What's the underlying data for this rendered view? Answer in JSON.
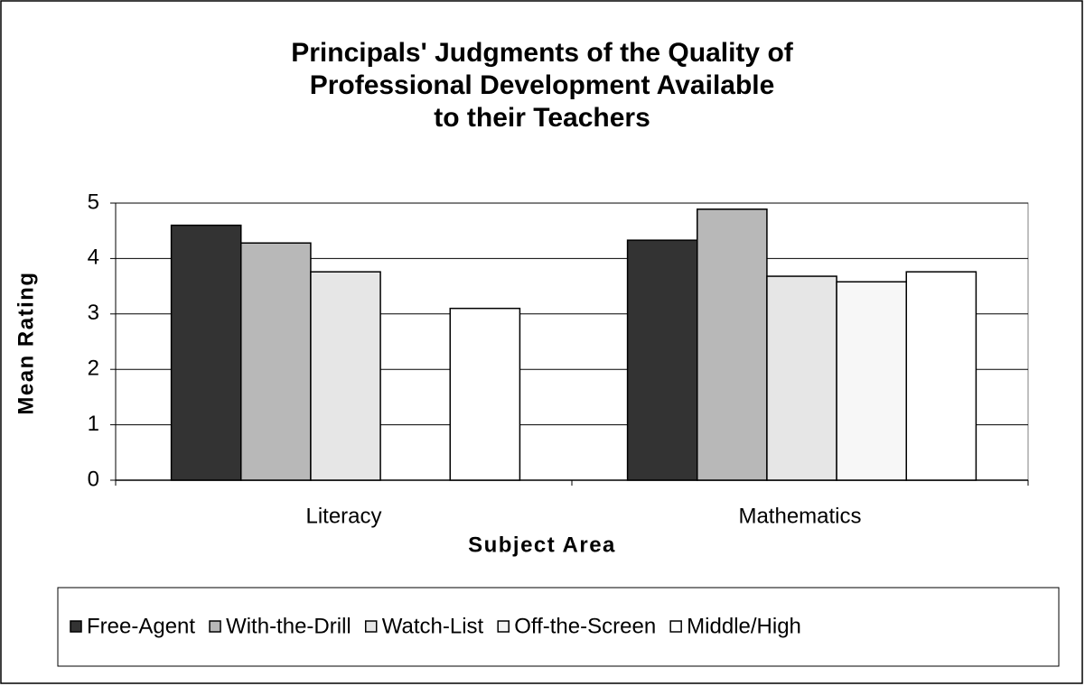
{
  "chart_data": {
    "type": "bar",
    "title": [
      "Principals' Judgments of the Quality of",
      "Professional Development Available",
      "to their Teachers"
    ],
    "x_label": "Subject Area",
    "y_label": "Mean Rating",
    "categories": [
      "Literacy",
      "Mathematics"
    ],
    "series": [
      {
        "name": "Free-Agent",
        "color": "#333333",
        "values": [
          4.6,
          4.33
        ]
      },
      {
        "name": "With-the-Drill",
        "color": "#b8b8b8",
        "values": [
          4.28,
          4.89
        ]
      },
      {
        "name": "Watch-List",
        "color": "#e6e6e6",
        "values": [
          3.76,
          3.68
        ]
      },
      {
        "name": "Off-the-Screen",
        "color": "#f7f7f7",
        "values": [
          null,
          3.58
        ]
      },
      {
        "name": "Middle/High",
        "color": "#ffffff",
        "values": [
          3.1,
          3.76
        ]
      }
    ],
    "ylim": [
      0,
      5
    ],
    "yticks": [
      0,
      1,
      2,
      3,
      4,
      5
    ],
    "grid": true,
    "legend": "bottom"
  }
}
